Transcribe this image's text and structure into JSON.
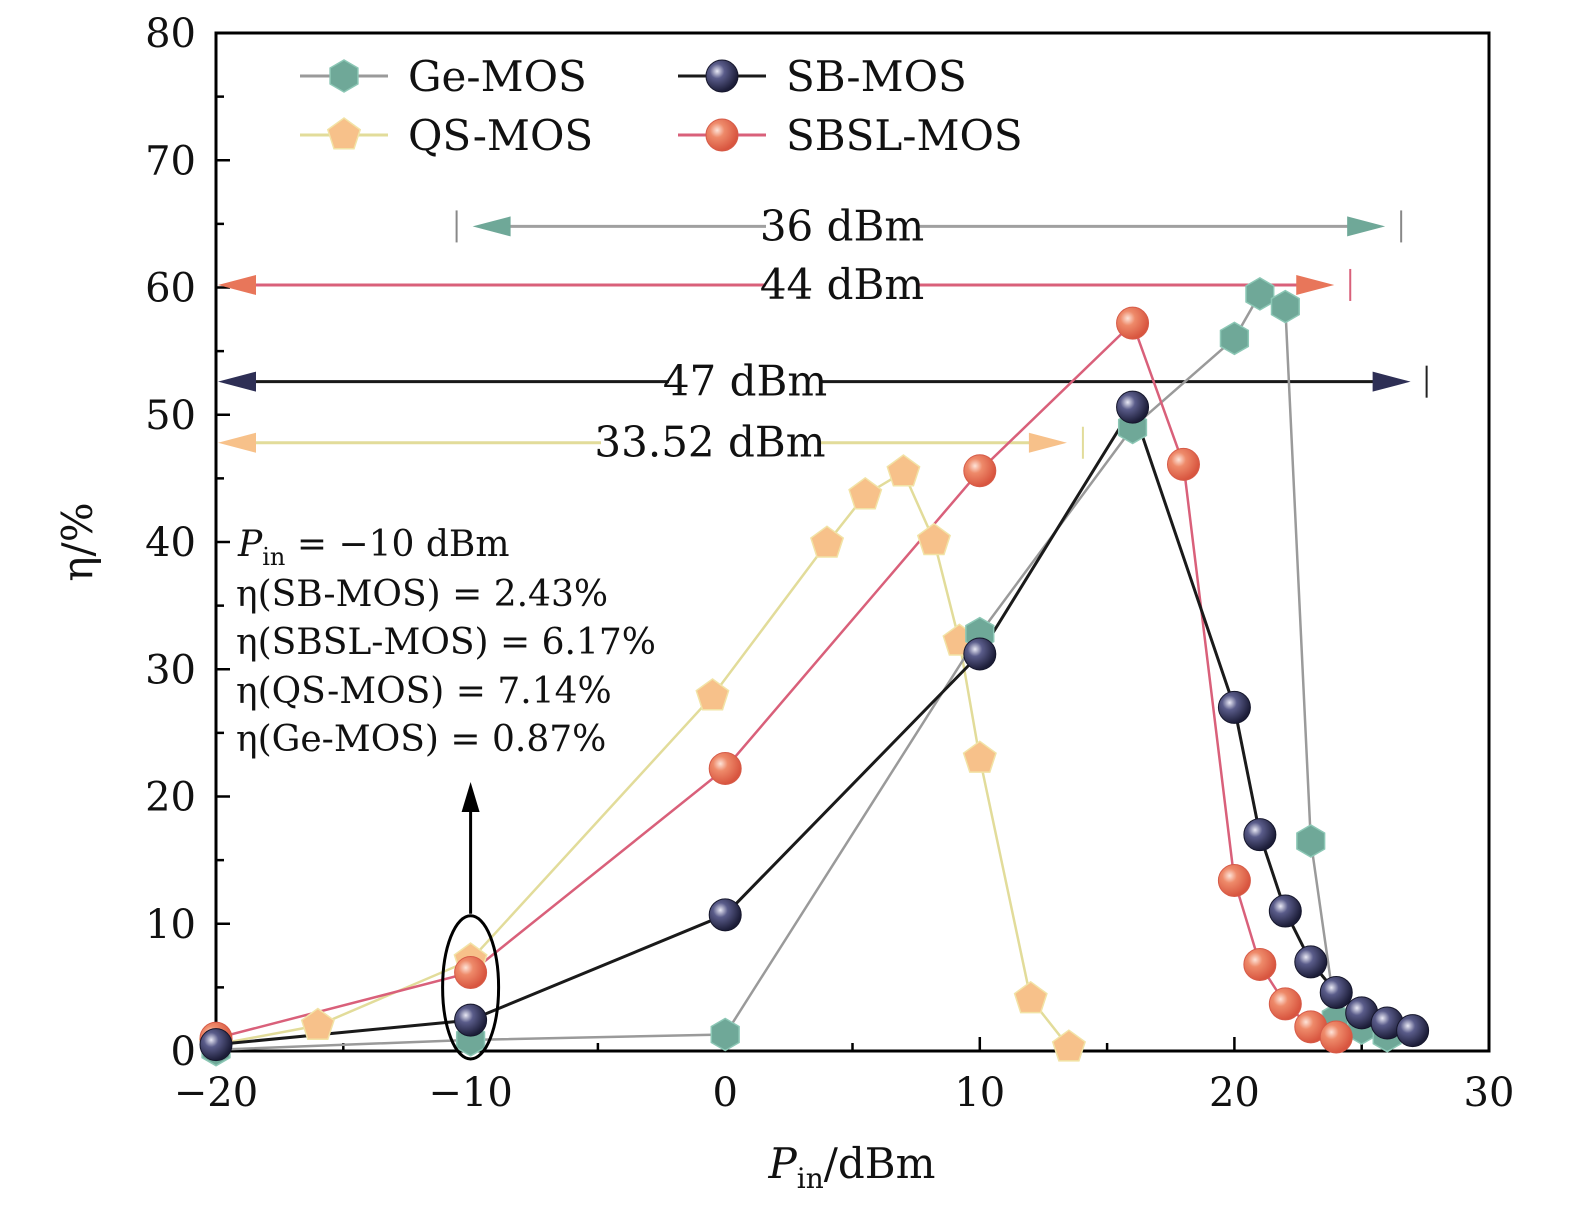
{
  "chart_data": {
    "type": "line",
    "title": "",
    "xlabel": "P_in/dBm",
    "xlabel_parts": {
      "main": "P",
      "sub": "in",
      "rest": "/dBm"
    },
    "ylabel": "η/%",
    "xlim": [
      -20,
      30
    ],
    "ylim": [
      0,
      80
    ],
    "xticks": [
      -20,
      -10,
      0,
      10,
      20,
      30
    ],
    "xtick_labels": [
      "−20",
      "−10",
      "0",
      "10",
      "20",
      "30"
    ],
    "xminor_step": 5,
    "yticks": [
      0,
      10,
      20,
      30,
      40,
      50,
      60,
      70,
      80
    ],
    "ytick_labels": [
      "0",
      "10",
      "20",
      "30",
      "40",
      "50",
      "60",
      "70",
      "80"
    ],
    "yminor_step": 5,
    "grid": false,
    "legend_position": "top-left",
    "series": [
      {
        "name": "Ge-MOS",
        "marker": "hexagon",
        "color": "#6fa898",
        "line_color": "#9a9a9a",
        "x": [
          -20,
          -10,
          0,
          10,
          16,
          20,
          21,
          22,
          23,
          24,
          25,
          26
        ],
        "y": [
          0.1,
          0.87,
          1.3,
          32.8,
          49.0,
          56.0,
          59.5,
          58.5,
          16.5,
          2.5,
          1.8,
          1.2
        ]
      },
      {
        "name": "SB-MOS",
        "marker": "sphere",
        "color": "#2e2f55",
        "line_color": "#1a1a1a",
        "x": [
          -20,
          -10,
          0,
          10,
          16,
          20,
          21,
          22,
          23,
          24,
          25,
          26,
          27
        ],
        "y": [
          0.5,
          2.43,
          10.7,
          31.2,
          50.6,
          27.0,
          17.0,
          11.0,
          7.0,
          4.6,
          3.0,
          2.2,
          1.6
        ]
      },
      {
        "name": "QS-MOS",
        "marker": "pentagon",
        "color": "#f7c18a",
        "line_color": "#e2dc9a",
        "x": [
          -20,
          -16,
          -10,
          -0.5,
          4,
          5.5,
          7,
          8.2,
          9.2,
          10,
          12,
          13.5
        ],
        "y": [
          0.5,
          2.0,
          7.14,
          27.9,
          39.9,
          43.7,
          45.5,
          40.1,
          32.2,
          23.0,
          4.1,
          0.3
        ]
      },
      {
        "name": "SBSL-MOS",
        "marker": "sphere",
        "color": "#e8765a",
        "line_color": "#d9607a",
        "x": [
          -20,
          -10,
          0,
          10,
          16,
          18,
          20,
          21,
          22,
          23,
          24
        ],
        "y": [
          1.0,
          6.17,
          22.2,
          45.6,
          57.2,
          46.1,
          13.4,
          6.8,
          3.7,
          1.9,
          1.1
        ]
      }
    ],
    "span_annotations": [
      {
        "label": "36 dBm",
        "x_start": -10,
        "x_end": 26,
        "y": 64.8,
        "color": "#6fa898",
        "line_color": "#a0a0a0"
      },
      {
        "label": "44 dBm",
        "x_start": -20,
        "x_end": 24,
        "y": 60.2,
        "color": "#e8765a",
        "line_color": "#d9607a"
      },
      {
        "label": "47 dBm",
        "x_start": -20,
        "x_end": 27,
        "y": 52.6,
        "color": "#2e2f55",
        "line_color": "#1a1a1a"
      },
      {
        "label": "33.52 dBm",
        "x_start": -20,
        "x_end": 13.5,
        "y": 47.8,
        "color": "#f7c18a",
        "line_color": "#e2dc9a"
      }
    ],
    "text_annotation": {
      "lines": [
        "P_in = −10 dBm",
        "η(SB-MOS) = 2.43%",
        "η(SBSL-MOS) = 6.17%",
        "η(QS-MOS) = 7.14%",
        "η(Ge-MOS) = 0.87%"
      ],
      "line1_parts": {
        "main": "P",
        "sub": "in",
        "rest": " = −10 dBm"
      },
      "highlight_x": -10,
      "highlight_y_range": [
        0,
        10
      ]
    }
  }
}
